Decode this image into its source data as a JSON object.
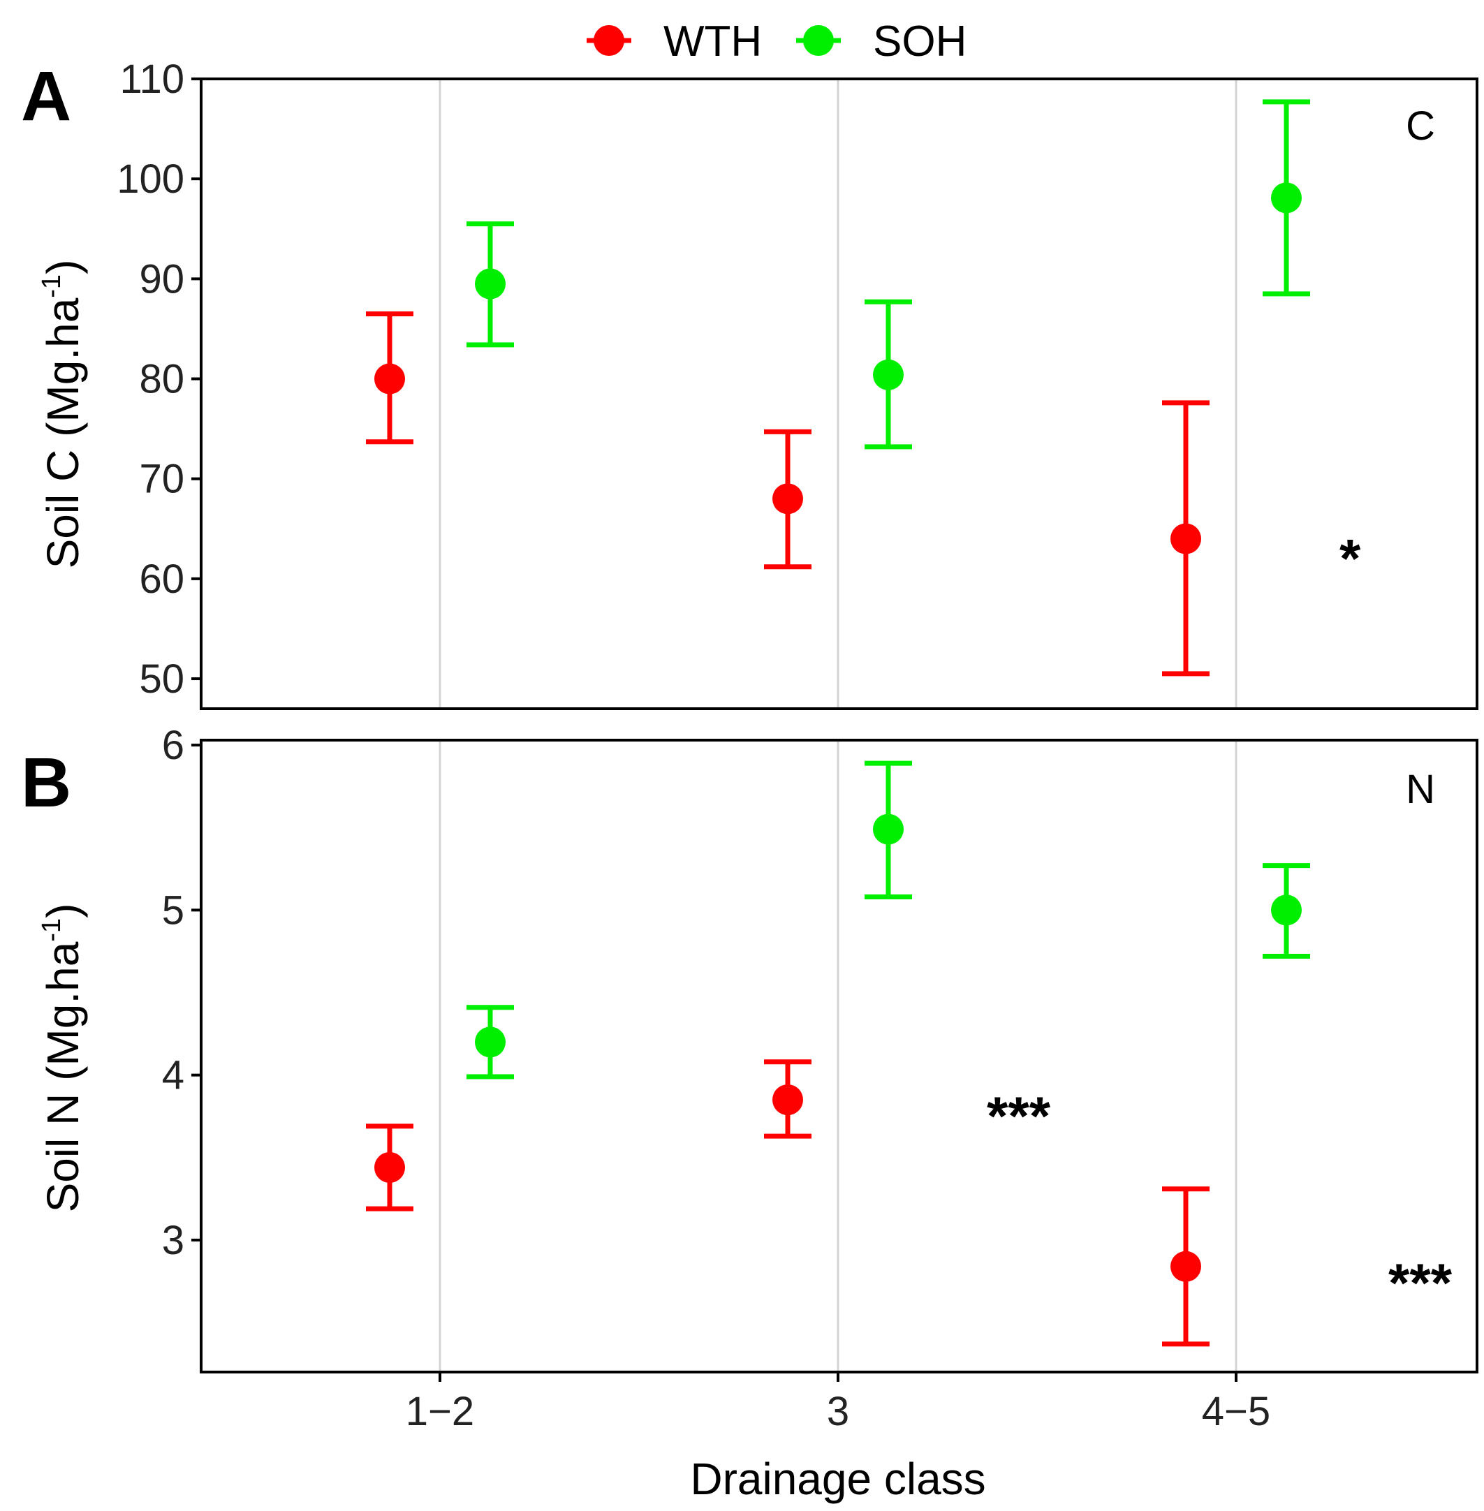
{
  "legend": [
    {
      "label": "WTH",
      "color": "#ff0000"
    },
    {
      "label": "SOH",
      "color": "#00ee00"
    }
  ],
  "chart_data": [
    {
      "type": "scatter",
      "panel": "A",
      "corner_label": "C",
      "ylabel_main": "Soil C (Mg.ha",
      "ylabel_sup": "-1",
      "ylabel_close": ")",
      "xlabel": "Drainage class",
      "categories": [
        "1−2",
        "3",
        "4−5"
      ],
      "ylim": [
        47,
        110
      ],
      "yticks": [
        50,
        60,
        70,
        80,
        90,
        100,
        110
      ],
      "yticklabels": [
        "50",
        "60",
        "70",
        "80",
        "90",
        "100",
        "110"
      ],
      "series": [
        {
          "name": "WTH",
          "color": "#ff0000",
          "values": [
            80,
            68,
            64
          ],
          "lower": [
            73.7,
            61.2,
            50.5
          ],
          "upper": [
            86.5,
            74.7,
            77.6
          ]
        },
        {
          "name": "SOH",
          "color": "#00ee00",
          "values": [
            89.5,
            80.4,
            98.1
          ],
          "lower": [
            83.4,
            73.2,
            88.5
          ],
          "upper": [
            95.5,
            87.7,
            107.7
          ]
        }
      ],
      "annotations": [
        {
          "text": "*",
          "category_index": 2,
          "y": 64
        }
      ]
    },
    {
      "type": "scatter",
      "panel": "B",
      "corner_label": "N",
      "ylabel_main": "Soil N (Mg.ha",
      "ylabel_sup": "-1",
      "ylabel_close": ")",
      "xlabel": "Drainage class",
      "categories": [
        "1−2",
        "3",
        "4−5"
      ],
      "ylim": [
        2.2,
        6.03
      ],
      "yticks": [
        3,
        4,
        5,
        6
      ],
      "yticklabels": [
        "3",
        "4",
        "5",
        "6"
      ],
      "series": [
        {
          "name": "WTH",
          "color": "#ff0000",
          "values": [
            3.44,
            3.85,
            2.84
          ],
          "lower": [
            3.19,
            3.63,
            2.37
          ],
          "upper": [
            3.69,
            4.08,
            3.31
          ]
        },
        {
          "name": "SOH",
          "color": "#00ee00",
          "values": [
            4.2,
            5.49,
            5.0
          ],
          "lower": [
            3.99,
            5.08,
            4.72
          ],
          "upper": [
            4.41,
            5.89,
            5.27
          ]
        }
      ],
      "annotations": [
        {
          "text": "***",
          "category_index": 1,
          "y": 3.85
        },
        {
          "text": "***",
          "category_index": 2,
          "y": 2.84
        }
      ]
    }
  ]
}
